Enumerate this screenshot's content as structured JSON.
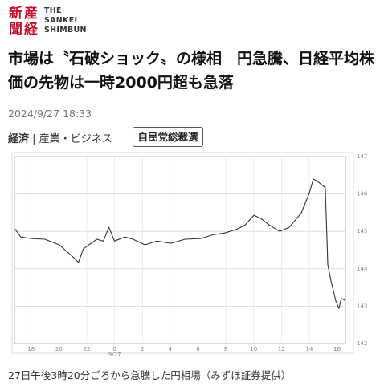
{
  "header": {
    "logo_kanji": [
      "産",
      "経",
      "新",
      "聞"
    ],
    "logo_english": [
      "THE",
      "SANKEI",
      "SHIMBUN"
    ]
  },
  "article": {
    "title": "市場は〝石破ショック〟の様相　円急騰、日経平均株価の先物は一時2000円超も急落",
    "date": "2024/9/27 18:33",
    "category": "経済",
    "separator": "|",
    "subcategory": "産業・ビジネス",
    "tag": "自民党総裁選",
    "caption": "27日午後3時20分ごろから急騰した円相場（みずほ証券提供）"
  },
  "chart_data": {
    "type": "line",
    "color": "#333333",
    "grid": true,
    "x": [
      16.85,
      17.25,
      18,
      18.98,
      20.02,
      21.0,
      21.4,
      21.75,
      22.15,
      22.73,
      23.19,
      23.59,
      23.99,
      24.74,
      25.32,
      26.18,
      27.05,
      28.03,
      29.07,
      30.22,
      31.08,
      31.95,
      32.81,
      33.39,
      34.02,
      34.54,
      35.12,
      35.87,
      36.56,
      37.42,
      38.0,
      38.29,
      38.58,
      39.15,
      39.33,
      39.56,
      39.9,
      40.13,
      40.31,
      40.59
    ],
    "values": [
      145.06,
      144.85,
      144.81,
      144.79,
      144.64,
      144.32,
      144.17,
      144.53,
      144.64,
      144.79,
      144.74,
      145.11,
      144.74,
      144.85,
      144.79,
      144.64,
      144.74,
      144.68,
      144.79,
      144.81,
      144.91,
      144.96,
      145.06,
      145.17,
      145.43,
      145.34,
      145.17,
      145.0,
      145.11,
      145.49,
      146.02,
      146.4,
      146.34,
      146.17,
      144.11,
      143.68,
      143.15,
      142.94,
      143.21,
      143.15
    ],
    "xlim": [
      16.8,
      40.6
    ],
    "xticks": [
      18,
      20,
      22,
      {
        "value": 24,
        "label": "0"
      },
      {
        "value": 26,
        "label": "2"
      },
      {
        "value": 28,
        "label": "4"
      },
      {
        "value": 30,
        "label": "6"
      },
      {
        "value": 32,
        "label": "8"
      },
      {
        "value": 34,
        "label": "10"
      },
      {
        "value": 36,
        "label": "12"
      },
      {
        "value": 38,
        "label": "14"
      },
      {
        "value": 40,
        "label": "16"
      }
    ],
    "date_label": "9/27",
    "ylim": [
      142,
      147
    ],
    "yticks": [
      142,
      143,
      144,
      145,
      146,
      147
    ]
  }
}
